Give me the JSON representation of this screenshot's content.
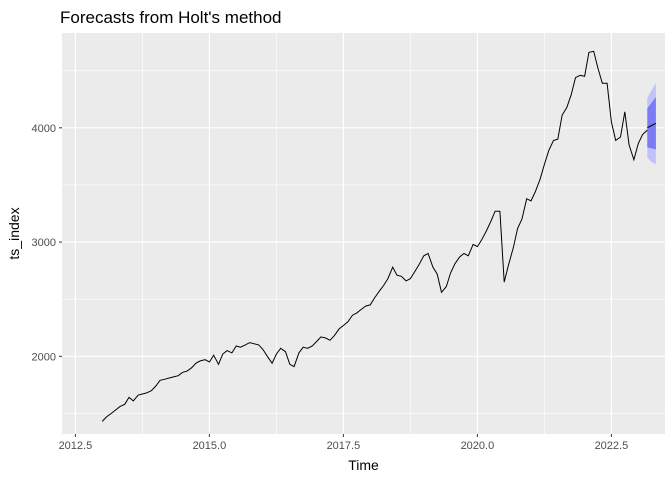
{
  "chart_data": {
    "type": "line",
    "title": "Forecasts from Holt's method",
    "xlabel": "Time",
    "ylabel": "ts_index",
    "xlim": [
      2012.25,
      2023.5
    ],
    "ylim": [
      1320,
      4830
    ],
    "x_ticks": [
      2012.5,
      2015.0,
      2017.5,
      2020.0,
      2022.5
    ],
    "x_tick_labels": [
      "2012.5",
      "2015.0",
      "2017.5",
      "2020.0",
      "2022.5"
    ],
    "y_ticks": [
      2000,
      3000,
      4000
    ],
    "y_tick_labels": [
      "2000",
      "3000",
      "4000"
    ],
    "grid": true,
    "series": [
      {
        "values": [
          [
            2013.0,
            1430
          ],
          [
            2013.08,
            1470
          ],
          [
            2013.17,
            1500
          ],
          [
            2013.25,
            1530
          ],
          [
            2013.33,
            1560
          ],
          [
            2013.42,
            1580
          ],
          [
            2013.5,
            1640
          ],
          [
            2013.58,
            1610
          ],
          [
            2013.67,
            1660
          ],
          [
            2013.75,
            1670
          ],
          [
            2013.83,
            1680
          ],
          [
            2013.92,
            1700
          ],
          [
            2014.0,
            1740
          ],
          [
            2014.08,
            1790
          ],
          [
            2014.17,
            1800
          ],
          [
            2014.25,
            1810
          ],
          [
            2014.33,
            1820
          ],
          [
            2014.42,
            1830
          ],
          [
            2014.5,
            1860
          ],
          [
            2014.58,
            1870
          ],
          [
            2014.67,
            1900
          ],
          [
            2014.75,
            1940
          ],
          [
            2014.83,
            1960
          ],
          [
            2014.92,
            1970
          ],
          [
            2015.0,
            1950
          ],
          [
            2015.08,
            2010
          ],
          [
            2015.17,
            1930
          ],
          [
            2015.25,
            2020
          ],
          [
            2015.33,
            2050
          ],
          [
            2015.42,
            2030
          ],
          [
            2015.5,
            2090
          ],
          [
            2015.58,
            2080
          ],
          [
            2015.67,
            2100
          ],
          [
            2015.75,
            2120
          ],
          [
            2015.83,
            2110
          ],
          [
            2015.92,
            2100
          ],
          [
            2016.0,
            2060
          ],
          [
            2016.08,
            2000
          ],
          [
            2016.17,
            1940
          ],
          [
            2016.25,
            2020
          ],
          [
            2016.33,
            2070
          ],
          [
            2016.42,
            2040
          ],
          [
            2016.5,
            1930
          ],
          [
            2016.58,
            1910
          ],
          [
            2016.67,
            2030
          ],
          [
            2016.75,
            2080
          ],
          [
            2016.83,
            2070
          ],
          [
            2016.92,
            2090
          ],
          [
            2017.0,
            2130
          ],
          [
            2017.08,
            2170
          ],
          [
            2017.17,
            2160
          ],
          [
            2017.25,
            2140
          ],
          [
            2017.33,
            2180
          ],
          [
            2017.42,
            2240
          ],
          [
            2017.5,
            2270
          ],
          [
            2017.58,
            2300
          ],
          [
            2017.67,
            2360
          ],
          [
            2017.75,
            2380
          ],
          [
            2017.83,
            2410
          ],
          [
            2017.92,
            2440
          ],
          [
            2018.0,
            2450
          ],
          [
            2018.08,
            2510
          ],
          [
            2018.17,
            2570
          ],
          [
            2018.25,
            2620
          ],
          [
            2018.33,
            2680
          ],
          [
            2018.42,
            2780
          ],
          [
            2018.5,
            2710
          ],
          [
            2018.58,
            2700
          ],
          [
            2018.67,
            2660
          ],
          [
            2018.75,
            2680
          ],
          [
            2018.83,
            2740
          ],
          [
            2018.92,
            2810
          ],
          [
            2019.0,
            2880
          ],
          [
            2019.08,
            2900
          ],
          [
            2019.17,
            2780
          ],
          [
            2019.25,
            2720
          ],
          [
            2019.33,
            2560
          ],
          [
            2019.42,
            2610
          ],
          [
            2019.5,
            2730
          ],
          [
            2019.58,
            2810
          ],
          [
            2019.67,
            2870
          ],
          [
            2019.75,
            2900
          ],
          [
            2019.83,
            2880
          ],
          [
            2019.92,
            2980
          ],
          [
            2020.0,
            2960
          ],
          [
            2020.08,
            3020
          ],
          [
            2020.17,
            3100
          ],
          [
            2020.25,
            3180
          ],
          [
            2020.33,
            3270
          ],
          [
            2020.42,
            3270
          ],
          [
            2020.5,
            2650
          ],
          [
            2020.58,
            2800
          ],
          [
            2020.67,
            2950
          ],
          [
            2020.75,
            3120
          ],
          [
            2020.83,
            3200
          ],
          [
            2020.92,
            3380
          ],
          [
            2021.0,
            3360
          ],
          [
            2021.08,
            3440
          ],
          [
            2021.17,
            3550
          ],
          [
            2021.25,
            3680
          ],
          [
            2021.33,
            3800
          ],
          [
            2021.42,
            3890
          ],
          [
            2021.5,
            3900
          ],
          [
            2021.58,
            4110
          ],
          [
            2021.67,
            4180
          ],
          [
            2021.75,
            4290
          ],
          [
            2021.83,
            4440
          ],
          [
            2021.92,
            4460
          ],
          [
            2022.0,
            4450
          ],
          [
            2022.08,
            4660
          ],
          [
            2022.17,
            4670
          ],
          [
            2022.25,
            4520
          ],
          [
            2022.33,
            4390
          ],
          [
            2022.42,
            4390
          ],
          [
            2022.5,
            4050
          ],
          [
            2022.58,
            3890
          ],
          [
            2022.67,
            3920
          ],
          [
            2022.75,
            4140
          ],
          [
            2022.83,
            3850
          ],
          [
            2022.92,
            3720
          ],
          [
            2023.0,
            3860
          ],
          [
            2023.08,
            3940
          ],
          [
            2023.17,
            3980
          ]
        ],
        "color": "#000000"
      },
      {
        "forecast": [
          [
            2023.17,
            4000
          ],
          [
            2023.25,
            4020
          ],
          [
            2023.33,
            4040
          ]
        ],
        "interval_80": [
          [
            2023.17,
            3830,
            4170
          ],
          [
            2023.25,
            3820,
            4220
          ],
          [
            2023.33,
            3810,
            4270
          ]
        ],
        "interval_95": [
          [
            2023.17,
            3740,
            4260
          ],
          [
            2023.25,
            3700,
            4330
          ],
          [
            2023.33,
            3680,
            4390
          ]
        ],
        "color_80": "#7B7BF6",
        "color_95": "#C2C2FA"
      }
    ],
    "panel_background": "#EBEBEB",
    "grid_color": "#FFFFFF"
  }
}
